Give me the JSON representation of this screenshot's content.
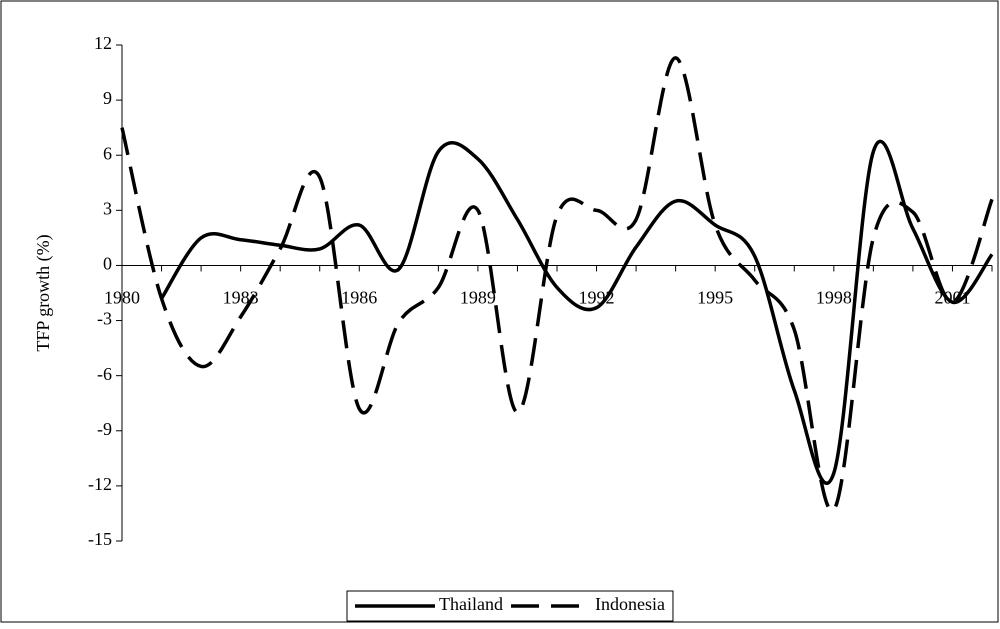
{
  "chart_data": {
    "type": "line",
    "y_label": "TFP growth (%)",
    "categories": [
      "1980",
      null,
      null,
      "1983",
      null,
      null,
      "1986",
      null,
      null,
      "1989",
      null,
      null,
      "1992",
      null,
      null,
      "1995",
      null,
      null,
      "1998",
      null,
      null,
      "2001",
      null
    ],
    "series": [
      {
        "name": "Thailand",
        "color": "#000000",
        "dash": "solid",
        "values": [
          null,
          -1.8,
          1.5,
          1.4,
          1.1,
          0.9,
          2.2,
          -0.2,
          6.2,
          5.8,
          2.5,
          -1.2,
          -2.3,
          1.0,
          3.5,
          2.2,
          0.5,
          -6.8,
          -11.3,
          6.2,
          2.0,
          -2.0,
          0.6
        ]
      },
      {
        "name": "Indonesia",
        "color": "#000000",
        "dash": "dashed",
        "values": [
          7.5,
          -1.8,
          -5.5,
          -2.8,
          0.9,
          4.8,
          -7.8,
          -3.1,
          -1.2,
          3.0,
          -8.0,
          2.7,
          3.0,
          2.5,
          11.3,
          2.2,
          -0.8,
          -3.5,
          -13.3,
          1.5,
          2.9,
          -2.0,
          3.6
        ]
      }
    ],
    "ylim": [
      -15,
      12
    ],
    "yticks": [
      -15,
      -12,
      -9,
      -6,
      -3,
      0,
      3,
      6,
      9,
      12
    ],
    "grid": false,
    "legend": "bottom"
  }
}
